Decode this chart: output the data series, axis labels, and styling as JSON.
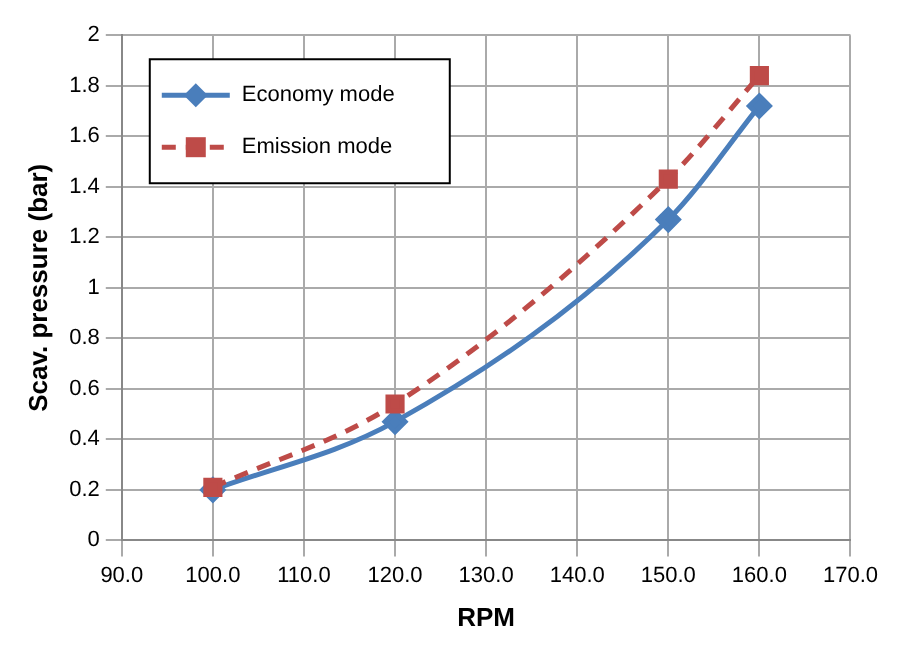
{
  "chart_data": {
    "type": "line",
    "xlabel": "RPM",
    "ylabel": "Scav. pressure (bar)",
    "x": [
      100,
      120,
      150,
      160
    ],
    "series": [
      {
        "name": "Economy mode",
        "color": "#4a7ebb",
        "values": [
          0.2,
          0.47,
          1.27,
          1.72
        ],
        "marker": "diamond",
        "line_style": "solid"
      },
      {
        "name": "Emission mode",
        "color": "#be4b48",
        "values": [
          0.21,
          0.54,
          1.43,
          1.84
        ],
        "marker": "square",
        "line_style": "dashed"
      }
    ],
    "xlim": [
      90,
      170
    ],
    "xticks": [
      {
        "value": 90,
        "label": "90.0"
      },
      {
        "value": 100,
        "label": "100.0"
      },
      {
        "value": 110,
        "label": "110.0"
      },
      {
        "value": 120,
        "label": "120.0"
      },
      {
        "value": 130,
        "label": "130.0"
      },
      {
        "value": 140,
        "label": "140.0"
      },
      {
        "value": 150,
        "label": "150.0"
      },
      {
        "value": 160,
        "label": "160.0"
      },
      {
        "value": 170,
        "label": "170.0"
      }
    ],
    "ylim": [
      0,
      2
    ],
    "yticks": [
      0,
      0.2,
      0.4,
      0.6,
      0.8,
      1,
      1.2,
      1.4,
      1.6,
      1.8,
      2
    ],
    "grid": true,
    "legend": "top left"
  }
}
